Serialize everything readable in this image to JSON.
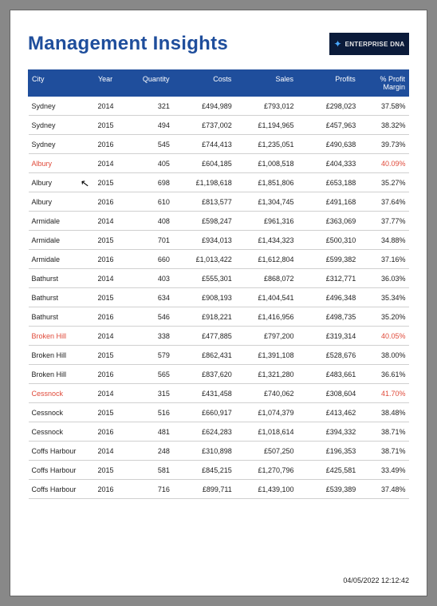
{
  "title": "Management Insights",
  "logo": {
    "icon": "✦",
    "text": "ENTERPRISE DNA"
  },
  "timestamp": "04/05/2022 12:12:42",
  "cursor": "↖",
  "table": {
    "columns": [
      {
        "key": "city",
        "label": "City",
        "align": "left",
        "width": "col-city"
      },
      {
        "key": "year",
        "label": "Year",
        "align": "left",
        "width": "col-year"
      },
      {
        "key": "qty",
        "label": "Quantity",
        "align": "right",
        "width": "col-qty"
      },
      {
        "key": "costs",
        "label": "Costs",
        "align": "right",
        "width": "col-costs"
      },
      {
        "key": "sales",
        "label": "Sales",
        "align": "right",
        "width": "col-sales"
      },
      {
        "key": "profits",
        "label": "Profits",
        "align": "right",
        "width": "col-profits"
      },
      {
        "key": "margin",
        "label": "% Profit Margin",
        "align": "right",
        "width": "col-margin"
      }
    ],
    "header_bg": "#1f4e9c",
    "header_fg": "#ffffff",
    "row_border": "#d0d0d0",
    "highlight_color": "#e04a3a",
    "rows": [
      {
        "city": "Sydney",
        "year": "2014",
        "qty": "321",
        "costs": "£494,989",
        "sales": "£793,012",
        "profits": "£298,023",
        "margin": "37.58%",
        "highlight": false
      },
      {
        "city": "Sydney",
        "year": "2015",
        "qty": "494",
        "costs": "£737,002",
        "sales": "£1,194,965",
        "profits": "£457,963",
        "margin": "38.32%",
        "highlight": false
      },
      {
        "city": "Sydney",
        "year": "2016",
        "qty": "545",
        "costs": "£744,413",
        "sales": "£1,235,051",
        "profits": "£490,638",
        "margin": "39.73%",
        "highlight": false
      },
      {
        "city": "Albury",
        "year": "2014",
        "qty": "405",
        "costs": "£604,185",
        "sales": "£1,008,518",
        "profits": "£404,333",
        "margin": "40.09%",
        "highlight": true
      },
      {
        "city": "Albury",
        "year": "2015",
        "qty": "698",
        "costs": "£1,198,618",
        "sales": "£1,851,806",
        "profits": "£653,188",
        "margin": "35.27%",
        "highlight": false
      },
      {
        "city": "Albury",
        "year": "2016",
        "qty": "610",
        "costs": "£813,577",
        "sales": "£1,304,745",
        "profits": "£491,168",
        "margin": "37.64%",
        "highlight": false
      },
      {
        "city": "Armidale",
        "year": "2014",
        "qty": "408",
        "costs": "£598,247",
        "sales": "£961,316",
        "profits": "£363,069",
        "margin": "37.77%",
        "highlight": false
      },
      {
        "city": "Armidale",
        "year": "2015",
        "qty": "701",
        "costs": "£934,013",
        "sales": "£1,434,323",
        "profits": "£500,310",
        "margin": "34.88%",
        "highlight": false
      },
      {
        "city": "Armidale",
        "year": "2016",
        "qty": "660",
        "costs": "£1,013,422",
        "sales": "£1,612,804",
        "profits": "£599,382",
        "margin": "37.16%",
        "highlight": false
      },
      {
        "city": "Bathurst",
        "year": "2014",
        "qty": "403",
        "costs": "£555,301",
        "sales": "£868,072",
        "profits": "£312,771",
        "margin": "36.03%",
        "highlight": false
      },
      {
        "city": "Bathurst",
        "year": "2015",
        "qty": "634",
        "costs": "£908,193",
        "sales": "£1,404,541",
        "profits": "£496,348",
        "margin": "35.34%",
        "highlight": false
      },
      {
        "city": "Bathurst",
        "year": "2016",
        "qty": "546",
        "costs": "£918,221",
        "sales": "£1,416,956",
        "profits": "£498,735",
        "margin": "35.20%",
        "highlight": false
      },
      {
        "city": "Broken Hill",
        "year": "2014",
        "qty": "338",
        "costs": "£477,885",
        "sales": "£797,200",
        "profits": "£319,314",
        "margin": "40.05%",
        "highlight": true
      },
      {
        "city": "Broken Hill",
        "year": "2015",
        "qty": "579",
        "costs": "£862,431",
        "sales": "£1,391,108",
        "profits": "£528,676",
        "margin": "38.00%",
        "highlight": false
      },
      {
        "city": "Broken Hill",
        "year": "2016",
        "qty": "565",
        "costs": "£837,620",
        "sales": "£1,321,280",
        "profits": "£483,661",
        "margin": "36.61%",
        "highlight": false
      },
      {
        "city": "Cessnock",
        "year": "2014",
        "qty": "315",
        "costs": "£431,458",
        "sales": "£740,062",
        "profits": "£308,604",
        "margin": "41.70%",
        "highlight": true
      },
      {
        "city": "Cessnock",
        "year": "2015",
        "qty": "516",
        "costs": "£660,917",
        "sales": "£1,074,379",
        "profits": "£413,462",
        "margin": "38.48%",
        "highlight": false
      },
      {
        "city": "Cessnock",
        "year": "2016",
        "qty": "481",
        "costs": "£624,283",
        "sales": "£1,018,614",
        "profits": "£394,332",
        "margin": "38.71%",
        "highlight": false
      },
      {
        "city": "Coffs Harbour",
        "year": "2014",
        "qty": "248",
        "costs": "£310,898",
        "sales": "£507,250",
        "profits": "£196,353",
        "margin": "38.71%",
        "highlight": false
      },
      {
        "city": "Coffs Harbour",
        "year": "2015",
        "qty": "581",
        "costs": "£845,215",
        "sales": "£1,270,796",
        "profits": "£425,581",
        "margin": "33.49%",
        "highlight": false
      },
      {
        "city": "Coffs Harbour",
        "year": "2016",
        "qty": "716",
        "costs": "£899,711",
        "sales": "£1,439,100",
        "profits": "£539,389",
        "margin": "37.48%",
        "highlight": false
      }
    ]
  }
}
